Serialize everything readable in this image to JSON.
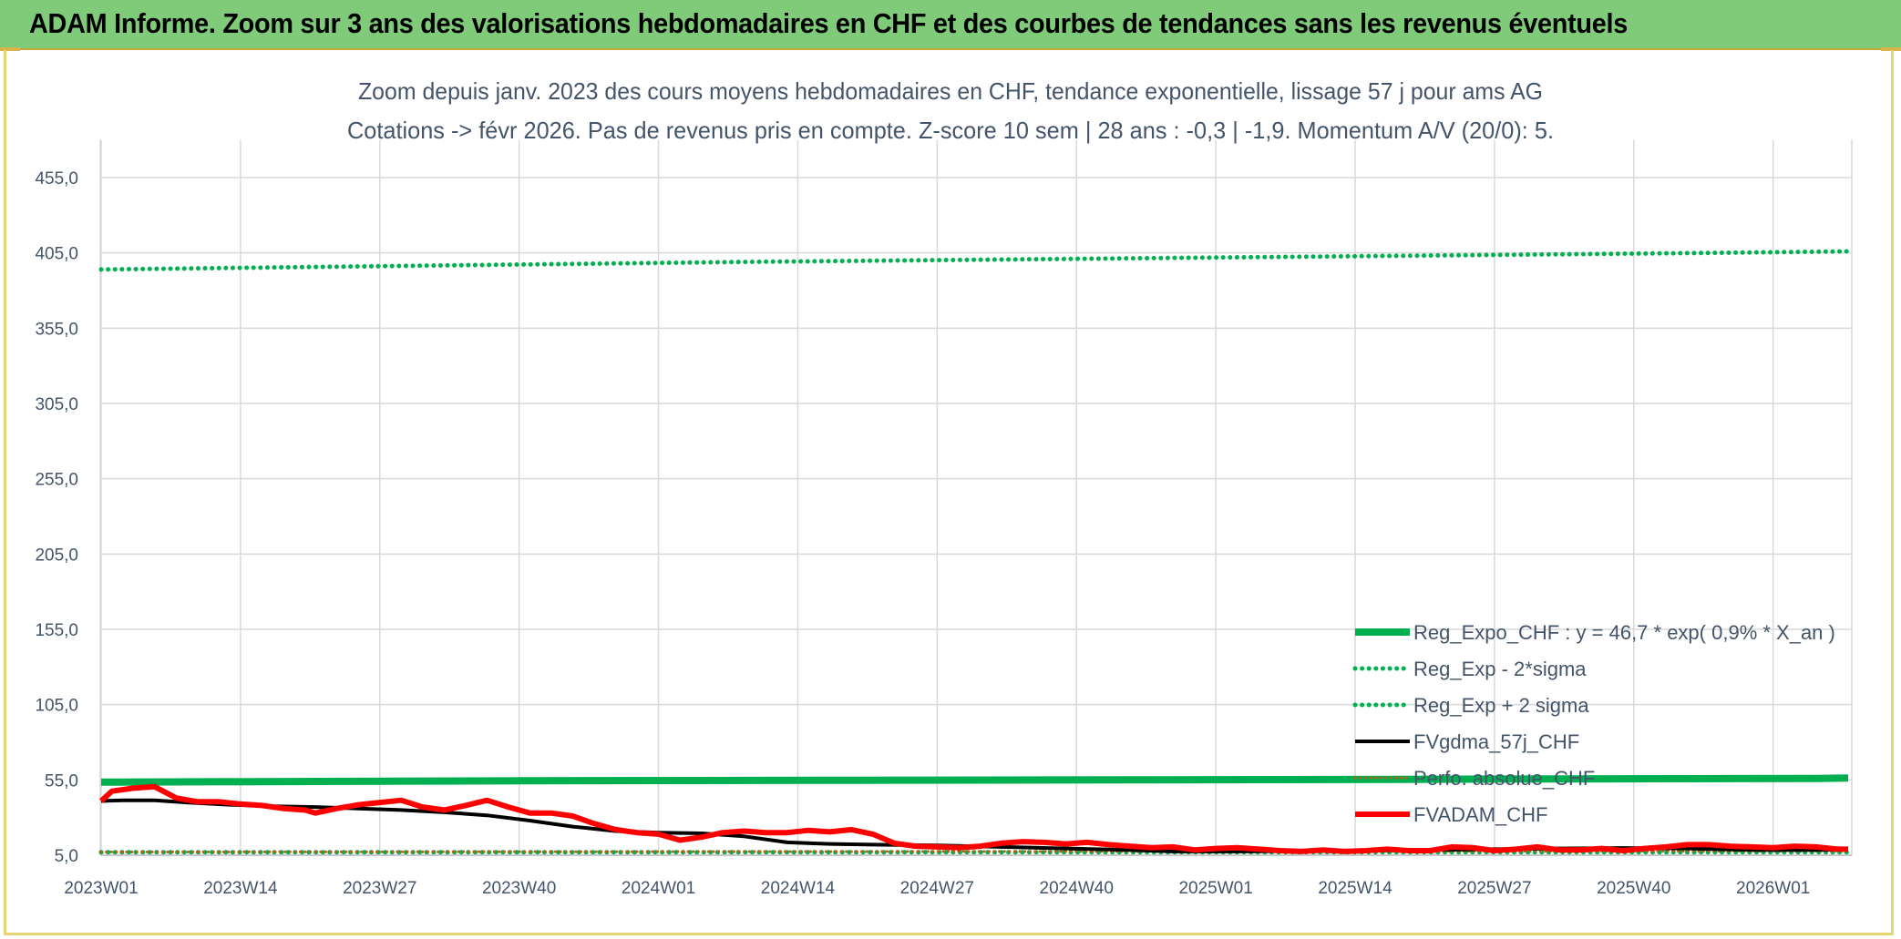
{
  "header": {
    "title": "ADAM Informe. Zoom sur 3 ans des valorisations hebdomadaires en CHF et des courbes de tendances sans les revenus éventuels"
  },
  "chart_data": {
    "type": "line",
    "subtitle_line1": "Zoom depuis janv. 2023 des cours moyens hebdomadaires en CHF, tendance exponentielle, lissage 57 j pour ams AG",
    "subtitle_line2": "Cotations -> févr 2026. Pas de revenus pris en compte. Z-score 10 sem | 28 ans : -0,3 | -1,9. Momentum A/V (20/0): 5.",
    "ylim": [
      5,
      480
    ],
    "yticks": [
      "5,0",
      "55,0",
      "105,0",
      "155,0",
      "205,0",
      "255,0",
      "305,0",
      "355,0",
      "405,0",
      "455,0"
    ],
    "ytick_values": [
      5,
      55,
      105,
      155,
      205,
      255,
      305,
      355,
      405,
      455
    ],
    "x_count": 164,
    "xticks": [
      "2023W01",
      "2023W14",
      "2023W27",
      "2023W40",
      "2024W01",
      "2024W14",
      "2024W27",
      "2024W40",
      "2025W01",
      "2025W14",
      "2025W27",
      "2025W40",
      "2026W01"
    ],
    "xtick_index": [
      0,
      13,
      26,
      39,
      52,
      65,
      78,
      91,
      104,
      117,
      130,
      143,
      156
    ],
    "grid": true,
    "legend_position": "bottom-right",
    "series": [
      {
        "name": "Reg_Expo_CHF : y = 46,7 * exp( 0,9% *  X_an )",
        "color": "#00b050",
        "style": "solid",
        "width": 8,
        "points": [
          [
            0,
            53.5
          ],
          [
            40,
            54.5
          ],
          [
            96,
            55.0
          ],
          [
            160,
            56.0
          ],
          [
            163,
            56.3
          ]
        ]
      },
      {
        "name": "Reg_Exp - 2*sigma",
        "color": "#00b050",
        "style": "dotted",
        "width": 5,
        "points": [
          [
            0,
            7.0
          ],
          [
            163,
            7.0
          ]
        ]
      },
      {
        "name": "Reg_Exp + 2 sigma",
        "color": "#00b050",
        "style": "dotted",
        "width": 5,
        "points": [
          [
            0,
            394
          ],
          [
            30,
            396.5
          ],
          [
            60,
            399
          ],
          [
            90,
            401
          ],
          [
            120,
            403
          ],
          [
            150,
            405
          ],
          [
            163,
            406
          ]
        ]
      },
      {
        "name": "FVgdma_57j_CHF",
        "color": "#000000",
        "style": "solid",
        "width": 4,
        "points": [
          [
            0,
            41
          ],
          [
            2,
            41.5
          ],
          [
            5,
            41.5
          ],
          [
            8,
            40
          ],
          [
            12,
            38.5
          ],
          [
            16,
            37.5
          ],
          [
            20,
            37
          ],
          [
            24,
            36
          ],
          [
            28,
            35
          ],
          [
            32,
            33.5
          ],
          [
            36,
            31.5
          ],
          [
            40,
            28
          ],
          [
            44,
            24
          ],
          [
            48,
            21
          ],
          [
            52,
            20
          ],
          [
            56,
            19.5
          ],
          [
            60,
            17.5
          ],
          [
            64,
            13.5
          ],
          [
            68,
            12.5
          ],
          [
            72,
            12
          ],
          [
            78,
            11.5
          ],
          [
            84,
            10.5
          ],
          [
            90,
            9.5
          ],
          [
            96,
            8.5
          ],
          [
            100,
            7.5
          ],
          [
            106,
            7.5
          ],
          [
            112,
            7.8
          ],
          [
            118,
            8.0
          ],
          [
            124,
            8.5
          ],
          [
            130,
            9.0
          ],
          [
            136,
            9.5
          ],
          [
            142,
            9.8
          ],
          [
            148,
            9.5
          ],
          [
            154,
            8.5
          ],
          [
            160,
            8.5
          ],
          [
            163,
            8.8
          ]
        ]
      },
      {
        "name": "Perfo. absolue_CHF",
        "color": "#c55a11",
        "style": "dotted",
        "width": 3,
        "points": [
          [
            0,
            7.2
          ],
          [
            60,
            7.4
          ],
          [
            120,
            7.6
          ],
          [
            163,
            7.8
          ]
        ]
      },
      {
        "name": "FVADAM_CHF",
        "color": "#ff0000",
        "style": "solid",
        "width": 6,
        "points": [
          [
            0,
            41
          ],
          [
            1,
            47.5
          ],
          [
            3,
            49.5
          ],
          [
            5,
            50.5
          ],
          [
            7,
            43
          ],
          [
            9,
            40.5
          ],
          [
            11,
            40.5
          ],
          [
            13,
            39
          ],
          [
            15,
            38
          ],
          [
            17,
            36
          ],
          [
            19,
            35
          ],
          [
            20,
            33
          ],
          [
            22,
            36
          ],
          [
            24,
            38.5
          ],
          [
            26,
            40
          ],
          [
            28,
            41.5
          ],
          [
            30,
            37
          ],
          [
            32,
            35
          ],
          [
            34,
            38
          ],
          [
            36,
            41.5
          ],
          [
            38,
            37
          ],
          [
            40,
            33
          ],
          [
            42,
            33
          ],
          [
            44,
            31
          ],
          [
            46,
            26
          ],
          [
            48,
            22
          ],
          [
            50,
            20
          ],
          [
            52,
            19
          ],
          [
            54,
            15
          ],
          [
            56,
            17
          ],
          [
            58,
            20
          ],
          [
            60,
            21
          ],
          [
            62,
            20
          ],
          [
            64,
            20
          ],
          [
            66,
            21.5
          ],
          [
            68,
            20.5
          ],
          [
            70,
            22
          ],
          [
            72,
            19
          ],
          [
            74,
            13
          ],
          [
            76,
            11
          ],
          [
            78,
            10.5
          ],
          [
            80,
            10
          ],
          [
            82,
            11
          ],
          [
            84,
            13
          ],
          [
            86,
            14
          ],
          [
            88,
            13.5
          ],
          [
            90,
            12.5
          ],
          [
            92,
            13.5
          ],
          [
            94,
            12
          ],
          [
            96,
            11
          ],
          [
            98,
            10
          ],
          [
            100,
            10.5
          ],
          [
            102,
            8.5
          ],
          [
            104,
            9.5
          ],
          [
            106,
            10
          ],
          [
            108,
            9
          ],
          [
            110,
            8
          ],
          [
            112,
            7.5
          ],
          [
            114,
            8.5
          ],
          [
            116,
            7.5
          ],
          [
            118,
            8
          ],
          [
            120,
            9
          ],
          [
            122,
            8
          ],
          [
            124,
            8
          ],
          [
            126,
            10.5
          ],
          [
            128,
            10
          ],
          [
            130,
            8
          ],
          [
            132,
            9
          ],
          [
            134,
            10.5
          ],
          [
            136,
            8.5
          ],
          [
            138,
            8.5
          ],
          [
            140,
            9.5
          ],
          [
            142,
            8
          ],
          [
            144,
            9.5
          ],
          [
            146,
            10.5
          ],
          [
            148,
            12
          ],
          [
            150,
            12
          ],
          [
            152,
            11
          ],
          [
            154,
            10.5
          ],
          [
            156,
            10
          ],
          [
            158,
            11
          ],
          [
            160,
            10.5
          ],
          [
            162,
            9
          ],
          [
            163,
            9
          ]
        ]
      }
    ]
  }
}
